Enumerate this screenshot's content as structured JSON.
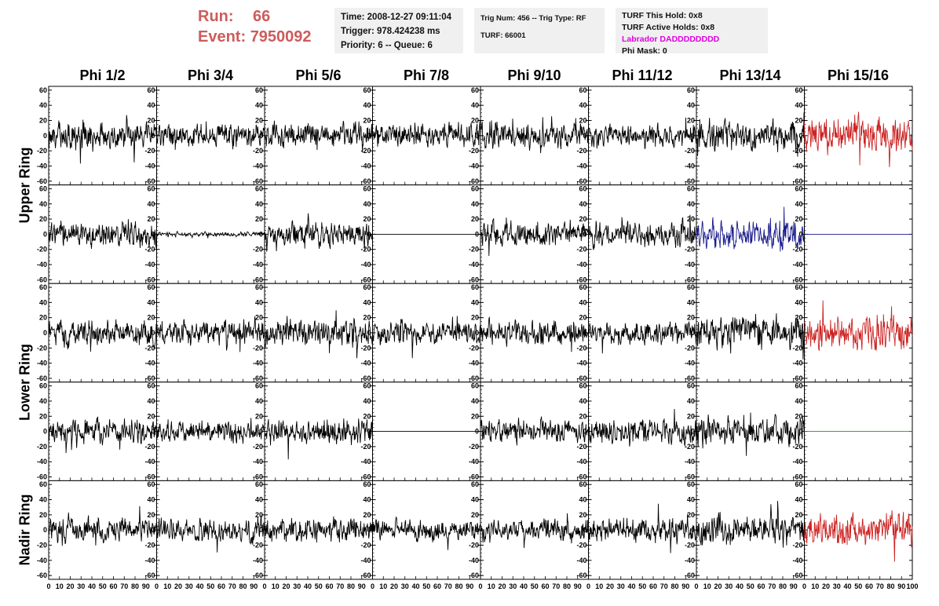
{
  "header": {
    "run_label": "Run:",
    "run_value": "66",
    "event_label": "Event:",
    "event_value": "7950092"
  },
  "info_panel": {
    "time": "Time: 2008-12-27 09:11:04",
    "trigger": "Trigger: 978.424238 ms",
    "priority": "Priority: 6 -- Queue: 6",
    "trig_num": "Trig Num: 456 -- Trig Type: RF",
    "turf": "TURF: 66001",
    "turf_this_hold": "TURF This Hold: 0x8",
    "turf_active_holds": "TURF Active Holds: 0x8",
    "labrador": "Labrador DADDDDDDDD",
    "phi_mask": "Phi Mask: 0"
  },
  "columns": [
    "Phi 1/2",
    "Phi 3/4",
    "Phi 5/6",
    "Phi 7/8",
    "Phi 9/10",
    "Phi 11/12",
    "Phi 13/14",
    "Phi 15/16"
  ],
  "row_groups": [
    "Upper Ring",
    "Lower Ring",
    "Nadir Ring"
  ],
  "colors": {
    "default_trace": "#000000",
    "red_trace": "#cc2222",
    "blue_trace": "#1a1a8c",
    "green_trace": "#2e8b2e",
    "title_red": "#cd5c5c",
    "labrador_magenta": "#e000e0"
  },
  "chart_data": {
    "type": "line",
    "x_range": [
      0,
      100
    ],
    "y_range": [
      -65,
      65
    ],
    "y_ticks": [
      -60,
      -40,
      -20,
      0,
      20,
      40,
      60
    ],
    "x_tick_labels": [
      "0",
      "10",
      "20",
      "30",
      "40",
      "50",
      "60",
      "70",
      "80",
      "90",
      "100"
    ],
    "grid": false,
    "rows": 5,
    "cols": 8,
    "panels": [
      {
        "row": 0,
        "col": 0,
        "amplitude": 18,
        "color": "#000000"
      },
      {
        "row": 0,
        "col": 1,
        "amplitude": 15,
        "color": "#000000"
      },
      {
        "row": 0,
        "col": 2,
        "amplitude": 16,
        "color": "#000000"
      },
      {
        "row": 0,
        "col": 3,
        "amplitude": 17,
        "color": "#000000"
      },
      {
        "row": 0,
        "col": 4,
        "amplitude": 16,
        "color": "#000000"
      },
      {
        "row": 0,
        "col": 5,
        "amplitude": 15,
        "color": "#000000"
      },
      {
        "row": 0,
        "col": 6,
        "amplitude": 20,
        "color": "#000000"
      },
      {
        "row": 0,
        "col": 7,
        "amplitude": 25,
        "color": "#cc2222"
      },
      {
        "row": 1,
        "col": 0,
        "amplitude": 18,
        "color": "#000000"
      },
      {
        "row": 1,
        "col": 1,
        "amplitude": 3,
        "color": "#000000"
      },
      {
        "row": 1,
        "col": 2,
        "amplitude": 16,
        "color": "#000000"
      },
      {
        "row": 1,
        "col": 3,
        "amplitude": 0,
        "color": "#000000"
      },
      {
        "row": 1,
        "col": 4,
        "amplitude": 16,
        "color": "#000000"
      },
      {
        "row": 1,
        "col": 5,
        "amplitude": 17,
        "color": "#000000"
      },
      {
        "row": 1,
        "col": 6,
        "amplitude": 20,
        "color": "#1a1a8c"
      },
      {
        "row": 1,
        "col": 7,
        "amplitude": 0,
        "color": "#1a1a8c"
      },
      {
        "row": 2,
        "col": 0,
        "amplitude": 17,
        "color": "#000000"
      },
      {
        "row": 2,
        "col": 1,
        "amplitude": 16,
        "color": "#000000"
      },
      {
        "row": 2,
        "col": 2,
        "amplitude": 17,
        "color": "#000000"
      },
      {
        "row": 2,
        "col": 3,
        "amplitude": 16,
        "color": "#000000"
      },
      {
        "row": 2,
        "col": 4,
        "amplitude": 16,
        "color": "#000000"
      },
      {
        "row": 2,
        "col": 5,
        "amplitude": 15,
        "color": "#000000"
      },
      {
        "row": 2,
        "col": 6,
        "amplitude": 22,
        "color": "#000000"
      },
      {
        "row": 2,
        "col": 7,
        "amplitude": 22,
        "color": "#cc2222"
      },
      {
        "row": 3,
        "col": 0,
        "amplitude": 16,
        "color": "#000000"
      },
      {
        "row": 3,
        "col": 1,
        "amplitude": 15,
        "color": "#000000"
      },
      {
        "row": 3,
        "col": 2,
        "amplitude": 17,
        "color": "#000000"
      },
      {
        "row": 3,
        "col": 3,
        "amplitude": 0,
        "color": "#000000"
      },
      {
        "row": 3,
        "col": 4,
        "amplitude": 16,
        "color": "#000000"
      },
      {
        "row": 3,
        "col": 5,
        "amplitude": 17,
        "color": "#000000"
      },
      {
        "row": 3,
        "col": 6,
        "amplitude": 20,
        "color": "#000000"
      },
      {
        "row": 3,
        "col": 7,
        "amplitude": 0,
        "color": "#2e8b2e"
      },
      {
        "row": 4,
        "col": 0,
        "amplitude": 16,
        "color": "#000000"
      },
      {
        "row": 4,
        "col": 1,
        "amplitude": 15,
        "color": "#000000"
      },
      {
        "row": 4,
        "col": 2,
        "amplitude": 16,
        "color": "#000000"
      },
      {
        "row": 4,
        "col": 3,
        "amplitude": 14,
        "color": "#000000"
      },
      {
        "row": 4,
        "col": 4,
        "amplitude": 15,
        "color": "#000000"
      },
      {
        "row": 4,
        "col": 5,
        "amplitude": 17,
        "color": "#000000"
      },
      {
        "row": 4,
        "col": 6,
        "amplitude": 20,
        "color": "#000000"
      },
      {
        "row": 4,
        "col": 7,
        "amplitude": 22,
        "color": "#cc2222"
      }
    ]
  }
}
